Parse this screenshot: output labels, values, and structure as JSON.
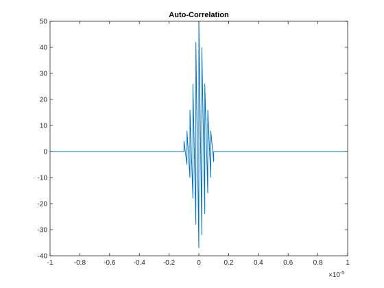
{
  "chart_data": {
    "type": "line",
    "title": "Auto-Correlation",
    "xlabel": "",
    "ylabel": "",
    "x_exponent_label": "×10",
    "x_exponent_power": "-5",
    "xlim": [
      -1,
      1
    ],
    "ylim": [
      -40,
      50
    ],
    "x_ticks": [
      -1,
      -0.8,
      -0.6,
      -0.4,
      -0.2,
      0,
      0.2,
      0.4,
      0.6,
      0.8,
      1
    ],
    "x_tick_labels": [
      "-1",
      "-0.8",
      "-0.6",
      "-0.4",
      "-0.2",
      "0",
      "0.2",
      "0.4",
      "0.6",
      "0.8",
      "1"
    ],
    "y_ticks": [
      -40,
      -30,
      -20,
      -10,
      0,
      10,
      20,
      30,
      40,
      50
    ],
    "y_tick_labels": [
      "-40",
      "-30",
      "-20",
      "-10",
      "0",
      "10",
      "20",
      "30",
      "40",
      "50"
    ],
    "grid": false,
    "color": "#0072BD",
    "series": [
      {
        "x": [
          -1,
          -0.1,
          -0.1,
          -0.08,
          -0.08,
          -0.06,
          -0.06,
          -0.04,
          -0.04,
          -0.02,
          -0.02,
          0,
          0,
          0.02,
          0.02,
          0.04,
          0.04,
          0.06,
          0.06,
          0.08,
          0.08,
          0.1,
          0.1,
          1
        ],
        "y": [
          0,
          0,
          4,
          -5,
          8,
          -10,
          16,
          -18,
          26,
          -28,
          42,
          -37,
          50,
          -32,
          40,
          -24,
          26,
          -16,
          16,
          -10,
          8,
          -4,
          0,
          0
        ]
      }
    ]
  }
}
